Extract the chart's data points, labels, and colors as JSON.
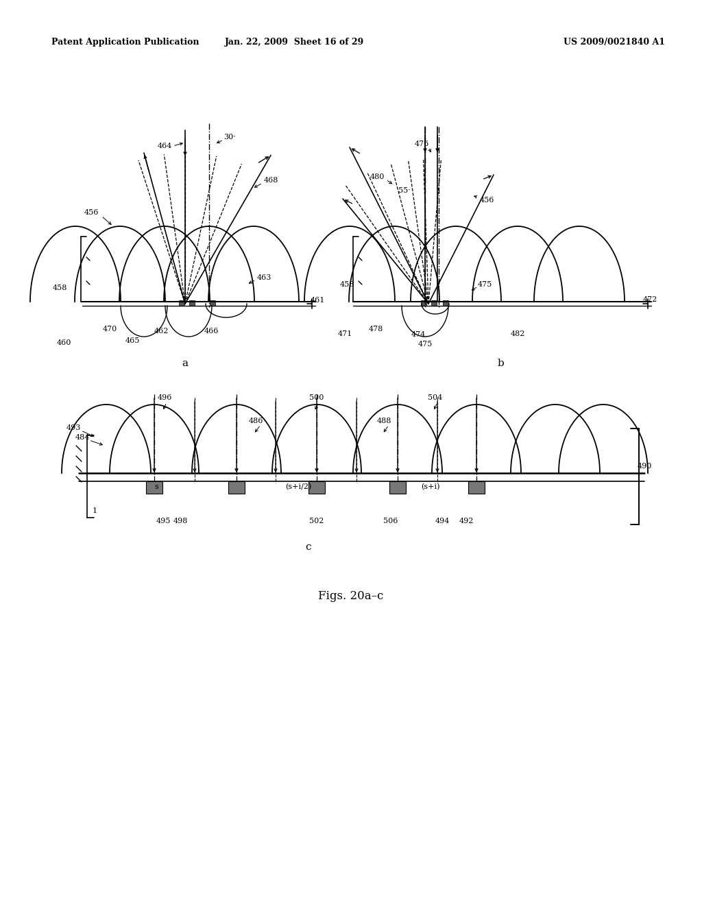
{
  "bg_color": "#ffffff",
  "line_color": "#000000",
  "header_left": "Patent Application Publication",
  "header_mid": "Jan. 22, 2009  Sheet 16 of 29",
  "header_right": "US 2009/0021840 A1",
  "caption": "Figs. 20a–c"
}
